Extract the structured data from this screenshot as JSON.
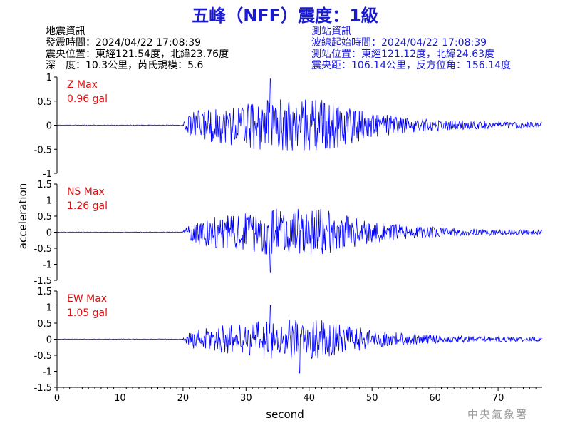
{
  "title": "五峰（NFF）震度：1級",
  "earthquake_info": {
    "heading": "地震資訊",
    "origin_time": "發震時間：2024/04/22 17:08:39",
    "epicenter": "震央位置：東經121.54度，北緯23.76度",
    "depth_magnitude": "深　度：10.3公里，芮氏規模：5.6"
  },
  "station_info": {
    "heading": "測站資訊",
    "wave_start": "波線起始時間：2024/04/22 17:08:39",
    "station_location": "測站位置：東經121.12度，北緯24.63度",
    "distance_azimuth": "震央距：106.14公里，反方位角：156.14度"
  },
  "organization": "中央氣象署",
  "colors": {
    "trace": "#0000ff",
    "max_label": "#e01010",
    "axis": "#000000"
  },
  "chart_data": {
    "type": "line",
    "xlabel": "second",
    "ylabel": "acceleration",
    "xlim": [
      0,
      77
    ],
    "xticks": [
      0,
      10,
      20,
      30,
      40,
      50,
      60,
      70
    ],
    "panels": [
      {
        "component": "Z",
        "max_label": "Z Max",
        "max_value": "0.96 gal",
        "peak": 0.96,
        "ylim": [
          -1,
          1
        ],
        "yticks": [
          -1,
          -0.5,
          0,
          0.5,
          1
        ]
      },
      {
        "component": "NS",
        "max_label": "NS Max",
        "max_value": "1.26 gal",
        "peak": 1.26,
        "ylim": [
          -1.5,
          1.5
        ],
        "yticks": [
          -1.5,
          -1,
          -0.5,
          0,
          0.5,
          1,
          1.5
        ]
      },
      {
        "component": "EW",
        "max_label": "EW Max",
        "max_value": "1.05 gal",
        "peak": 1.05,
        "ylim": [
          -1.5,
          1.5
        ],
        "yticks": [
          -1.5,
          -1,
          -0.5,
          0,
          0.5,
          1,
          1.5
        ]
      }
    ]
  }
}
